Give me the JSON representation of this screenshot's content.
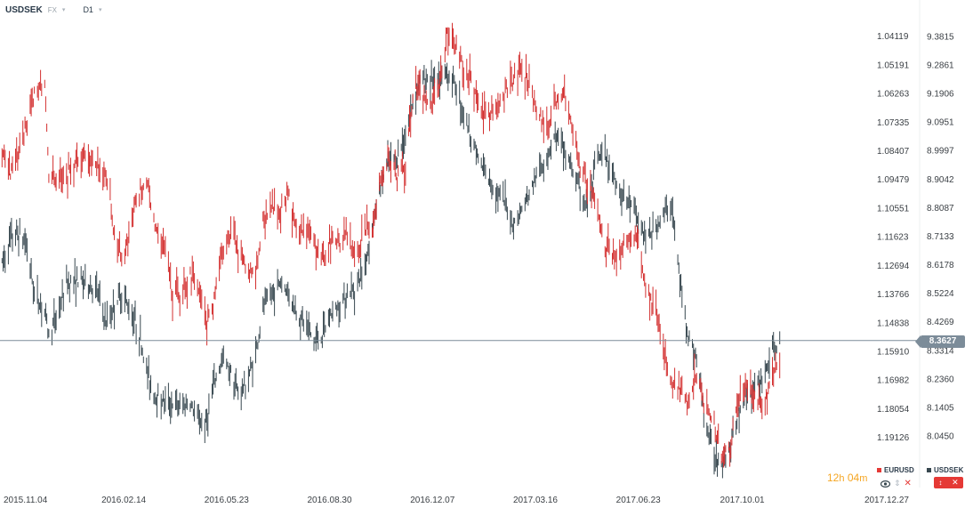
{
  "header": {
    "symbol": "USDSEK",
    "market": "FX",
    "timeframe": "D1"
  },
  "timer": {
    "hours": "12",
    "hours_unit": "h",
    "minutes": "04",
    "minutes_unit": "m"
  },
  "legend": [
    {
      "name": "EURUSD",
      "color": "#d32f2f"
    },
    {
      "name": "USDSEK",
      "color": "#37474f"
    }
  ],
  "icons": {
    "eye": "eye-icon",
    "updown": "up-down-icon",
    "close": "close-icon",
    "adjust": "scale-icon"
  },
  "chart_data": {
    "type": "ohlc",
    "x_type": "date",
    "x_range": [
      "2015-10-18",
      "2018-01-18"
    ],
    "x_ticks": [
      "2015.11.04",
      "2016.02.14",
      "2016.05.23",
      "2016.08.30",
      "2016.12.07",
      "2017.03.16",
      "2017.06.23",
      "2017.10.01",
      "2017.12.27"
    ],
    "y_right": {
      "name": "USDSEK",
      "range": [
        7.877,
        9.478
      ],
      "ticks": [
        "9.3815",
        "9.2861",
        "9.1906",
        "9.0951",
        "8.9997",
        "8.9042",
        "8.8087",
        "8.7133",
        "8.6178",
        "8.5224",
        "8.4269",
        "8.3314",
        "8.2360",
        "8.1405",
        "8.0450"
      ]
    },
    "y_left": {
      "name": "EURUSD",
      "inverted": true,
      "range": [
        1.0305,
        1.2095
      ],
      "ticks": [
        "1.04119",
        "1.05191",
        "1.06263",
        "1.07335",
        "1.08407",
        "1.09479",
        "1.10551",
        "1.11623",
        "1.12694",
        "1.13766",
        "1.14838",
        "1.15910",
        "1.16982",
        "1.18054",
        "1.19126"
      ]
    },
    "last_price": "8.3627",
    "series": [
      {
        "name": "EURUSD",
        "color": "#d32f2f",
        "points": [
          [
            "2015-10-20",
            1.083
          ],
          [
            "2015-10-28",
            1.093
          ],
          [
            "2015-11-04",
            1.087
          ],
          [
            "2015-11-12",
            1.075
          ],
          [
            "2015-11-20",
            1.063
          ],
          [
            "2015-11-30",
            1.058
          ],
          [
            "2015-12-04",
            1.094
          ],
          [
            "2015-12-12",
            1.094
          ],
          [
            "2015-12-22",
            1.092
          ],
          [
            "2016-01-04",
            1.086
          ],
          [
            "2016-01-12",
            1.087
          ],
          [
            "2016-01-20",
            1.089
          ],
          [
            "2016-01-28",
            1.092
          ],
          [
            "2016-02-05",
            1.117
          ],
          [
            "2016-02-12",
            1.125
          ],
          [
            "2016-02-20",
            1.114
          ],
          [
            "2016-02-28",
            1.1
          ],
          [
            "2016-03-07",
            1.095
          ],
          [
            "2016-03-15",
            1.112
          ],
          [
            "2016-03-23",
            1.118
          ],
          [
            "2016-04-01",
            1.138
          ],
          [
            "2016-04-09",
            1.139
          ],
          [
            "2016-04-17",
            1.13
          ],
          [
            "2016-04-25",
            1.134
          ],
          [
            "2016-05-03",
            1.15
          ],
          [
            "2016-05-11",
            1.14
          ],
          [
            "2016-05-19",
            1.122
          ],
          [
            "2016-05-27",
            1.114
          ],
          [
            "2016-06-04",
            1.123
          ],
          [
            "2016-06-12",
            1.128
          ],
          [
            "2016-06-20",
            1.13
          ],
          [
            "2016-06-28",
            1.108
          ],
          [
            "2016-07-06",
            1.107
          ],
          [
            "2016-07-14",
            1.106
          ],
          [
            "2016-07-22",
            1.1
          ],
          [
            "2016-07-30",
            1.117
          ],
          [
            "2016-08-07",
            1.112
          ],
          [
            "2016-08-15",
            1.12
          ],
          [
            "2016-08-23",
            1.125
          ],
          [
            "2016-08-31",
            1.118
          ],
          [
            "2016-09-08",
            1.12
          ],
          [
            "2016-09-16",
            1.116
          ],
          [
            "2016-09-24",
            1.123
          ],
          [
            "2016-10-02",
            1.115
          ],
          [
            "2016-10-10",
            1.113
          ],
          [
            "2016-10-18",
            1.095
          ],
          [
            "2016-10-26",
            1.087
          ],
          [
            "2016-11-03",
            1.095
          ],
          [
            "2016-11-11",
            1.09
          ],
          [
            "2016-11-19",
            1.06
          ],
          [
            "2016-11-27",
            1.063
          ],
          [
            "2016-12-05",
            1.068
          ],
          [
            "2016-12-13",
            1.06
          ],
          [
            "2016-12-21",
            1.04
          ],
          [
            "2016-12-29",
            1.045
          ],
          [
            "2017-01-06",
            1.052
          ],
          [
            "2017-01-14",
            1.058
          ],
          [
            "2017-01-22",
            1.068
          ],
          [
            "2017-01-30",
            1.072
          ],
          [
            "2017-02-07",
            1.068
          ],
          [
            "2017-02-15",
            1.062
          ],
          [
            "2017-02-23",
            1.058
          ],
          [
            "2017-03-03",
            1.055
          ],
          [
            "2017-03-11",
            1.06
          ],
          [
            "2017-03-19",
            1.07
          ],
          [
            "2017-03-27",
            1.076
          ],
          [
            "2017-04-04",
            1.067
          ],
          [
            "2017-04-12",
            1.062
          ],
          [
            "2017-04-20",
            1.075
          ],
          [
            "2017-04-28",
            1.09
          ],
          [
            "2017-05-06",
            1.097
          ],
          [
            "2017-05-14",
            1.105
          ],
          [
            "2017-05-22",
            1.12
          ],
          [
            "2017-05-30",
            1.124
          ],
          [
            "2017-06-07",
            1.121
          ],
          [
            "2017-06-15",
            1.118
          ],
          [
            "2017-06-23",
            1.118
          ],
          [
            "2017-07-01",
            1.138
          ],
          [
            "2017-07-09",
            1.142
          ],
          [
            "2017-07-17",
            1.158
          ],
          [
            "2017-07-25",
            1.17
          ],
          [
            "2017-08-02",
            1.174
          ],
          [
            "2017-08-10",
            1.178
          ],
          [
            "2017-08-18",
            1.168
          ],
          [
            "2017-08-26",
            1.18
          ],
          [
            "2017-09-03",
            1.186
          ],
          [
            "2017-09-11",
            1.198
          ],
          [
            "2017-09-19",
            1.196
          ],
          [
            "2017-09-27",
            1.176
          ],
          [
            "2017-10-05",
            1.172
          ],
          [
            "2017-10-13",
            1.175
          ],
          [
            "2017-10-21",
            1.18
          ],
          [
            "2017-10-29",
            1.168
          ],
          [
            "2017-11-06",
            1.162
          ]
        ]
      },
      {
        "name": "USDSEK",
        "color": "#37474f",
        "points": [
          [
            "2015-10-20",
            8.62
          ],
          [
            "2015-10-28",
            8.7
          ],
          [
            "2015-11-04",
            8.72
          ],
          [
            "2015-11-12",
            8.69
          ],
          [
            "2015-11-20",
            8.52
          ],
          [
            "2015-11-30",
            8.46
          ],
          [
            "2015-12-04",
            8.38
          ],
          [
            "2015-12-12",
            8.45
          ],
          [
            "2015-12-22",
            8.56
          ],
          [
            "2016-01-04",
            8.56
          ],
          [
            "2016-01-12",
            8.55
          ],
          [
            "2016-01-20",
            8.52
          ],
          [
            "2016-01-28",
            8.42
          ],
          [
            "2016-02-05",
            8.48
          ],
          [
            "2016-02-12",
            8.52
          ],
          [
            "2016-02-20",
            8.47
          ],
          [
            "2016-02-28",
            8.4
          ],
          [
            "2016-03-07",
            8.26
          ],
          [
            "2016-03-15",
            8.18
          ],
          [
            "2016-03-23",
            8.16
          ],
          [
            "2016-04-01",
            8.15
          ],
          [
            "2016-04-09",
            8.14
          ],
          [
            "2016-04-17",
            8.16
          ],
          [
            "2016-04-25",
            8.1
          ],
          [
            "2016-05-03",
            8.08
          ],
          [
            "2016-05-11",
            8.22
          ],
          [
            "2016-05-19",
            8.3
          ],
          [
            "2016-05-27",
            8.26
          ],
          [
            "2016-06-04",
            8.18
          ],
          [
            "2016-06-12",
            8.23
          ],
          [
            "2016-06-20",
            8.32
          ],
          [
            "2016-06-28",
            8.48
          ],
          [
            "2016-07-06",
            8.52
          ],
          [
            "2016-07-14",
            8.56
          ],
          [
            "2016-07-22",
            8.52
          ],
          [
            "2016-07-30",
            8.45
          ],
          [
            "2016-08-07",
            8.42
          ],
          [
            "2016-08-15",
            8.36
          ],
          [
            "2016-08-23",
            8.38
          ],
          [
            "2016-08-31",
            8.45
          ],
          [
            "2016-09-08",
            8.48
          ],
          [
            "2016-09-16",
            8.52
          ],
          [
            "2016-09-24",
            8.54
          ],
          [
            "2016-10-02",
            8.6
          ],
          [
            "2016-10-10",
            8.74
          ],
          [
            "2016-10-18",
            8.88
          ],
          [
            "2016-10-26",
            8.96
          ],
          [
            "2016-11-03",
            8.98
          ],
          [
            "2016-11-11",
            9.05
          ],
          [
            "2016-11-19",
            9.18
          ],
          [
            "2016-11-27",
            9.24
          ],
          [
            "2016-12-05",
            9.24
          ],
          [
            "2016-12-13",
            9.22
          ],
          [
            "2016-12-21",
            9.26
          ],
          [
            "2016-12-29",
            9.22
          ],
          [
            "2017-01-06",
            9.12
          ],
          [
            "2017-01-14",
            9.04
          ],
          [
            "2017-01-22",
            8.95
          ],
          [
            "2017-01-30",
            8.9
          ],
          [
            "2017-02-07",
            8.86
          ],
          [
            "2017-02-15",
            8.82
          ],
          [
            "2017-02-23",
            8.75
          ],
          [
            "2017-03-03",
            8.8
          ],
          [
            "2017-03-11",
            8.86
          ],
          [
            "2017-03-19",
            8.93
          ],
          [
            "2017-03-27",
            8.98
          ],
          [
            "2017-04-04",
            9.05
          ],
          [
            "2017-04-12",
            9.0
          ],
          [
            "2017-04-20",
            8.94
          ],
          [
            "2017-04-28",
            8.86
          ],
          [
            "2017-05-06",
            8.8
          ],
          [
            "2017-05-14",
            8.97
          ],
          [
            "2017-05-22",
            8.98
          ],
          [
            "2017-05-30",
            8.92
          ],
          [
            "2017-06-07",
            8.85
          ],
          [
            "2017-06-15",
            8.82
          ],
          [
            "2017-06-23",
            8.76
          ],
          [
            "2017-07-01",
            8.7
          ],
          [
            "2017-07-09",
            8.74
          ],
          [
            "2017-07-17",
            8.78
          ],
          [
            "2017-07-25",
            8.82
          ],
          [
            "2017-08-02",
            8.56
          ],
          [
            "2017-08-10",
            8.38
          ],
          [
            "2017-08-18",
            8.3
          ],
          [
            "2017-08-26",
            8.1
          ],
          [
            "2017-09-03",
            7.98
          ],
          [
            "2017-09-11",
            7.96
          ],
          [
            "2017-09-19",
            8.0
          ],
          [
            "2017-09-27",
            8.12
          ],
          [
            "2017-10-05",
            8.18
          ],
          [
            "2017-10-13",
            8.2
          ],
          [
            "2017-10-21",
            8.24
          ],
          [
            "2017-10-29",
            8.32
          ],
          [
            "2017-11-06",
            8.36
          ]
        ]
      }
    ]
  }
}
